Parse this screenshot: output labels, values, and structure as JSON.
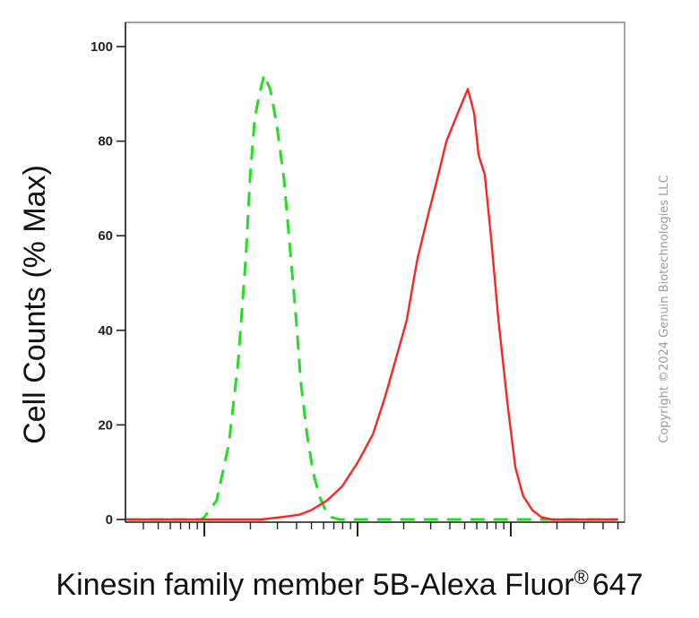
{
  "chart_data": {
    "type": "line",
    "xlabel": "Kinesin family member 5B-Alexa Fluor",
    "xlabel_suffix": "647",
    "registered_mark": "®",
    "ylabel": "Cell Counts (% Max)",
    "x_scale": "log",
    "ylim": [
      0,
      100
    ],
    "y_ticks": [
      0,
      20,
      40,
      60,
      80,
      100
    ],
    "y_tick_labels": [
      "0",
      "20",
      "40",
      "60",
      "80",
      "100"
    ],
    "grid": false,
    "series": [
      {
        "style": "dashed",
        "color": "#22dd22",
        "x": [
          -0.9,
          -0.02,
          0.0,
          0.08,
          0.16,
          0.22,
          0.27,
          0.3,
          0.33,
          0.36,
          0.39,
          0.43,
          0.47,
          0.52,
          0.56,
          0.6,
          0.63,
          0.67,
          0.71,
          0.75,
          0.79,
          0.83,
          0.88,
          0.95,
          1.6,
          2.7
        ],
        "y": [
          0,
          0,
          0.5,
          4,
          16,
          33,
          55,
          73,
          85,
          90,
          94,
          91,
          84,
          72,
          57,
          42,
          29,
          18,
          10,
          5,
          2,
          0.5,
          0,
          0,
          0,
          0
        ]
      },
      {
        "style": "solid",
        "color": "#ff2222",
        "x": [
          -0.9,
          0.37,
          0.5,
          0.62,
          0.7,
          0.8,
          0.9,
          1.0,
          1.1,
          1.18,
          1.25,
          1.32,
          1.39,
          1.45,
          1.52,
          1.58,
          1.63,
          1.68,
          1.72,
          1.76,
          1.79,
          1.83,
          1.87,
          1.92,
          1.98,
          2.03,
          2.08,
          2.14,
          2.2,
          2.27,
          2.35,
          2.7
        ],
        "y": [
          0,
          0,
          0.5,
          1,
          2,
          4,
          7,
          12,
          18,
          26,
          34,
          42,
          55,
          63,
          72,
          80,
          84,
          88,
          91,
          86,
          77,
          73,
          60,
          42,
          24,
          11,
          5,
          2,
          0.5,
          0,
          0,
          0
        ]
      }
    ]
  },
  "copyright": "Copyright ©2024 Genuin Biotechnologies LLC"
}
